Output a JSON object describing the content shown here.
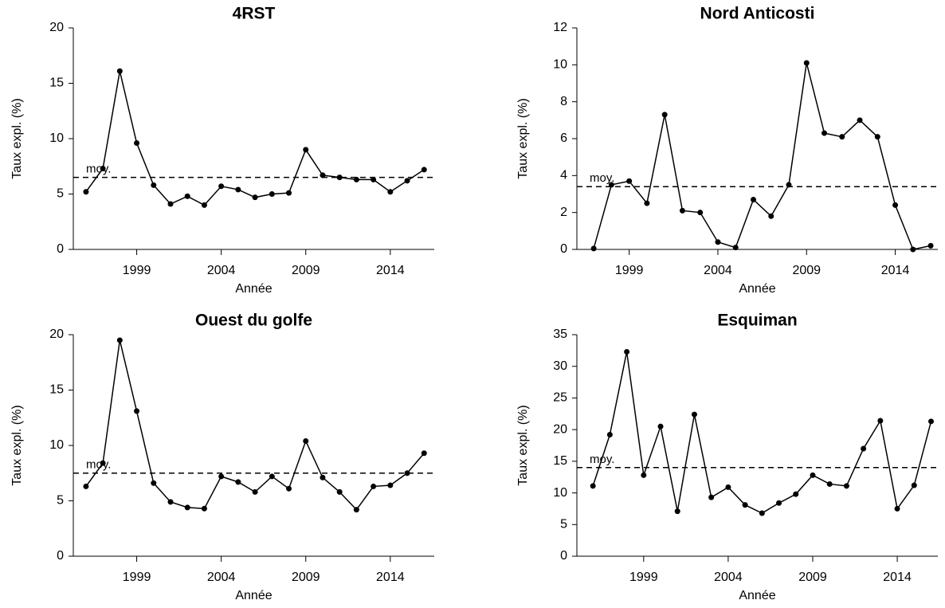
{
  "chart_data": [
    {
      "type": "line",
      "title": "4RST",
      "x_label": "Année",
      "y_label": "Taux expl. (%)",
      "x": [
        1996,
        1997,
        1998,
        1999,
        2000,
        2001,
        2002,
        2003,
        2004,
        2005,
        2006,
        2007,
        2008,
        2009,
        2010,
        2011,
        2012,
        2013,
        2014,
        2015,
        2016
      ],
      "series": [
        {
          "color": "#000000",
          "values": [
            5.2,
            7.3,
            16.1,
            9.6,
            5.8,
            4.1,
            4.8,
            4.0,
            5.7,
            5.4,
            4.7,
            5.0,
            5.1,
            9.0,
            6.7,
            6.5,
            6.3,
            6.3,
            5.2,
            6.2,
            7.2
          ]
        }
      ],
      "reference_line": {
        "value": 6.5,
        "label": "moy."
      },
      "xlim": [
        1995.25,
        2016.6
      ],
      "xticks": [
        1999,
        2004,
        2009,
        2014
      ],
      "ylim": [
        0,
        20
      ],
      "yticks": [
        0,
        5,
        10,
        15,
        20
      ]
    },
    {
      "type": "line",
      "title": "Nord Anticosti",
      "x_label": "Année",
      "y_label": "Taux expl. (%)",
      "x": [
        1997,
        1998,
        1999,
        2000,
        2001,
        2002,
        2003,
        2004,
        2005,
        2006,
        2007,
        2008,
        2009,
        2010,
        2011,
        2012,
        2013,
        2014,
        2015,
        2016
      ],
      "series": [
        {
          "color": "#000000",
          "values": [
            0.05,
            3.5,
            3.7,
            2.5,
            7.3,
            2.1,
            2.0,
            0.4,
            0.1,
            2.7,
            1.8,
            3.5,
            10.1,
            6.3,
            6.1,
            7.0,
            6.1,
            2.4,
            0.0,
            0.2
          ]
        }
      ],
      "reference_line": {
        "value": 3.4,
        "label": "moy."
      },
      "xlim": [
        1996.05,
        2016.4
      ],
      "xticks": [
        1999,
        2004,
        2009,
        2014
      ],
      "ylim": [
        0,
        12
      ],
      "yticks": [
        0,
        2,
        4,
        6,
        8,
        10,
        12
      ]
    },
    {
      "type": "line",
      "title": "Ouest du golfe",
      "x_label": "Année",
      "y_label": "Taux expl. (%)",
      "x": [
        1996,
        1997,
        1998,
        1999,
        2000,
        2001,
        2002,
        2003,
        2004,
        2005,
        2006,
        2007,
        2008,
        2009,
        2010,
        2011,
        2012,
        2013,
        2014,
        2015,
        2016
      ],
      "series": [
        {
          "color": "#000000",
          "values": [
            6.3,
            8.4,
            19.5,
            13.1,
            6.6,
            4.9,
            4.4,
            4.3,
            7.2,
            6.7,
            5.8,
            7.2,
            6.1,
            10.4,
            7.1,
            5.8,
            4.2,
            6.3,
            6.4,
            7.5,
            9.3
          ]
        }
      ],
      "reference_line": {
        "value": 7.5,
        "label": "moy."
      },
      "xlim": [
        1995.25,
        2016.6
      ],
      "xticks": [
        1999,
        2004,
        2009,
        2014
      ],
      "ylim": [
        0,
        20
      ],
      "yticks": [
        0,
        5,
        10,
        15,
        20
      ]
    },
    {
      "type": "line",
      "title": "Esquiman",
      "x_label": "Année",
      "y_label": "Taux expl. (%)",
      "x": [
        1996,
        1997,
        1998,
        1999,
        2000,
        2001,
        2002,
        2003,
        2004,
        2005,
        2006,
        2007,
        2008,
        2009,
        2010,
        2011,
        2012,
        2013,
        2014,
        2015,
        2016
      ],
      "series": [
        {
          "color": "#000000",
          "values": [
            11.1,
            19.2,
            32.3,
            12.8,
            20.5,
            7.1,
            22.4,
            9.3,
            10.9,
            8.1,
            6.8,
            8.4,
            9.8,
            12.8,
            11.4,
            11.1,
            17.0,
            21.4,
            7.5,
            11.2,
            21.3
          ]
        }
      ],
      "reference_line": {
        "value": 14.0,
        "label": "moy."
      },
      "xlim": [
        1995.05,
        2016.4
      ],
      "xticks": [
        1999,
        2004,
        2009,
        2014
      ],
      "ylim": [
        0,
        35
      ],
      "yticks": [
        0,
        5,
        10,
        15,
        20,
        25,
        30,
        35
      ]
    }
  ]
}
